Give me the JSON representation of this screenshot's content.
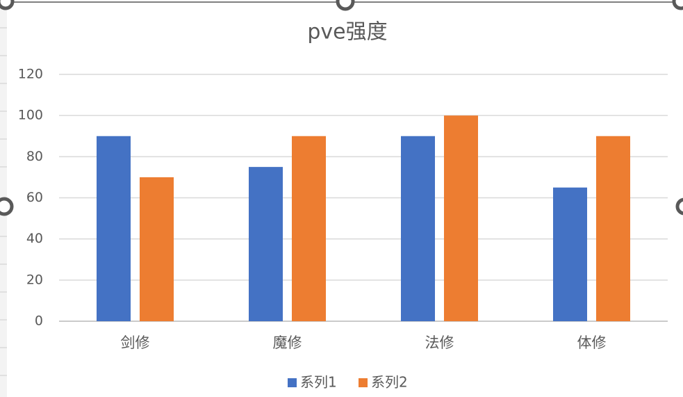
{
  "chart_data": {
    "type": "bar",
    "title": "pve强度",
    "categories": [
      "剑修",
      "魔修",
      "法修",
      "体修"
    ],
    "series": [
      {
        "name": "系列1",
        "color": "#4472c4",
        "values": [
          90,
          75,
          90,
          65
        ]
      },
      {
        "name": "系列2",
        "color": "#ed7d31",
        "values": [
          70,
          90,
          100,
          90
        ]
      }
    ],
    "ylim": [
      0,
      120
    ],
    "yticks": [
      0,
      20,
      40,
      60,
      80,
      100,
      120
    ],
    "grid": true,
    "legend": "bottom"
  }
}
